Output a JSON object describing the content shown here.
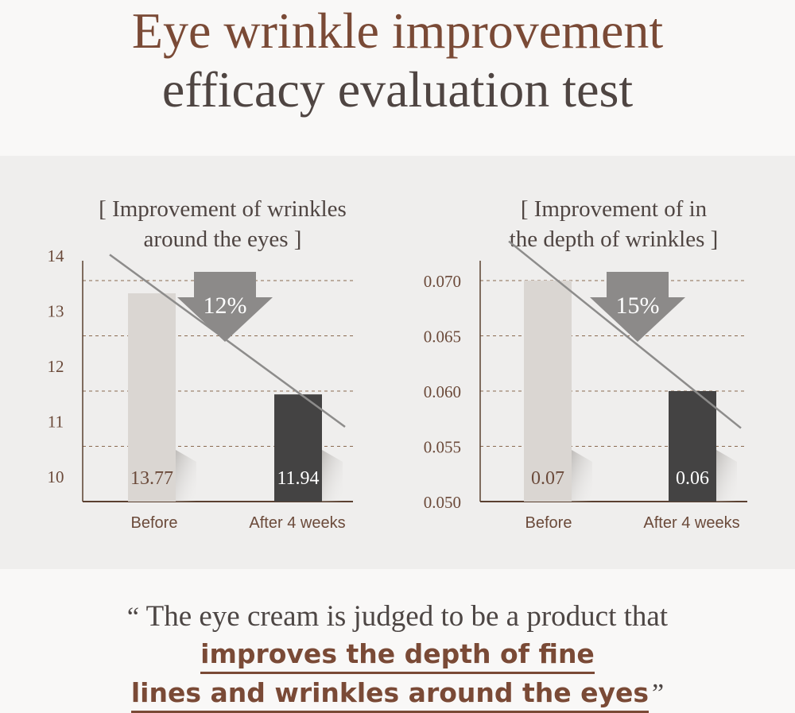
{
  "page": {
    "title_line1": "Eye wrinkle improvement",
    "title_line2": "efficacy evaluation test"
  },
  "quote": {
    "open_mark": "“",
    "text": "The eye cream is judged to be a product that",
    "highlight_line1": "improves the depth of fine",
    "highlight_line2": "lines and wrinkles around the eyes",
    "close_mark": "”"
  },
  "colors": {
    "accent": "#7a4a36",
    "before_bar": "#dad6d2",
    "after_bar": "#444343",
    "arrow": "#8c8a89"
  },
  "chart_data": [
    {
      "type": "bar",
      "title_line1": "[ Improvement of wrinkles",
      "title_line2": "around the eyes ]",
      "categories": [
        "Before",
        "After 4 weeks"
      ],
      "values": [
        13.77,
        11.94
      ],
      "value_labels": [
        "13.77",
        "11.94"
      ],
      "ylim": [
        10,
        14
      ],
      "yticks": [
        10,
        11,
        12,
        13,
        14
      ],
      "ytick_labels": [
        "10",
        "11",
        "12",
        "13",
        "14"
      ],
      "grid": "dashed",
      "badge": "12%"
    },
    {
      "type": "bar",
      "title_line1": "[ Improvement of in",
      "title_line2": "the depth of wrinkles ]",
      "categories": [
        "Before",
        "After 4 weeks"
      ],
      "values": [
        0.07,
        0.06
      ],
      "value_labels": [
        "0.07",
        "0.06"
      ],
      "ylim": [
        0.05,
        0.072
      ],
      "yticks": [
        0.05,
        0.055,
        0.06,
        0.065,
        0.07
      ],
      "ytick_labels": [
        "0.050",
        "0.055",
        "0.060",
        "0.065",
        "0.070"
      ],
      "grid": "dashed",
      "badge": "15%"
    }
  ]
}
